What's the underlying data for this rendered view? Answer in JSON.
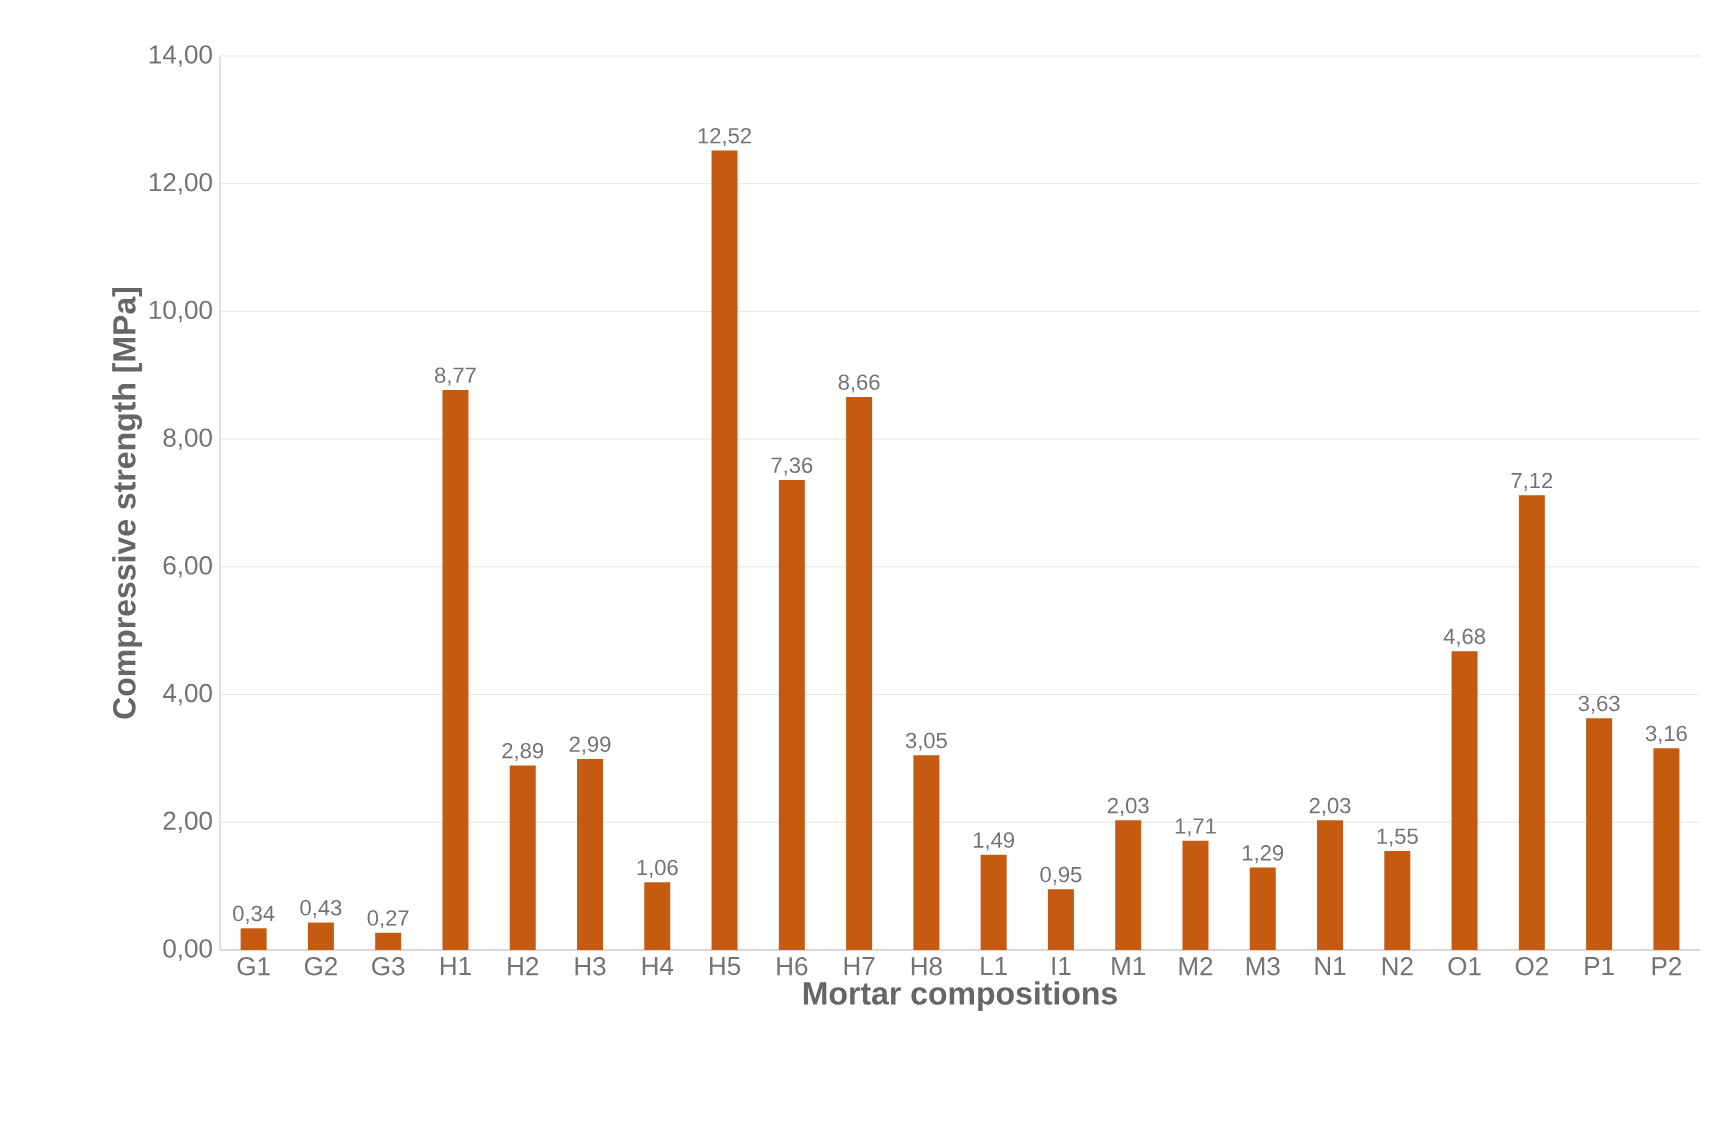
{
  "chart_data": {
    "type": "bar",
    "xlabel": "Mortar compositions",
    "ylabel": "Compressive strength [MPa]",
    "categories": [
      "G1",
      "G2",
      "G3",
      "H1",
      "H2",
      "H3",
      "H4",
      "H5",
      "H6",
      "H7",
      "H8",
      "L1",
      "I1",
      "M1",
      "M2",
      "M3",
      "N1",
      "N2",
      "O1",
      "O2",
      "P1",
      "P2"
    ],
    "values": [
      0.34,
      0.43,
      0.27,
      8.77,
      2.89,
      2.99,
      1.06,
      12.52,
      7.36,
      8.66,
      3.05,
      1.49,
      0.95,
      2.03,
      1.71,
      1.29,
      2.03,
      1.55,
      4.68,
      7.12,
      3.63,
      3.16
    ],
    "value_labels": [
      "0,34",
      "0,43",
      "0,27",
      "8,77",
      "2,89",
      "2,99",
      "1,06",
      "12,52",
      "7,36",
      "8,66",
      "3,05",
      "1,49",
      "0,95",
      "2,03",
      "1,71",
      "1,29",
      "2,03",
      "1,55",
      "4,68",
      "7,12",
      "3,63",
      "3,16"
    ],
    "color": "#c55a11",
    "ylim": [
      0,
      14
    ],
    "yticks": [
      {
        "value": 0,
        "label": "0,00"
      },
      {
        "value": 2,
        "label": "2,00"
      },
      {
        "value": 4,
        "label": "4,00"
      },
      {
        "value": 6,
        "label": "6,00"
      },
      {
        "value": 8,
        "label": "8,00"
      },
      {
        "value": 10,
        "label": "10,00"
      },
      {
        "value": 12,
        "label": "12,00"
      },
      {
        "value": 14,
        "label": "14,00"
      }
    ],
    "grid": "y"
  }
}
